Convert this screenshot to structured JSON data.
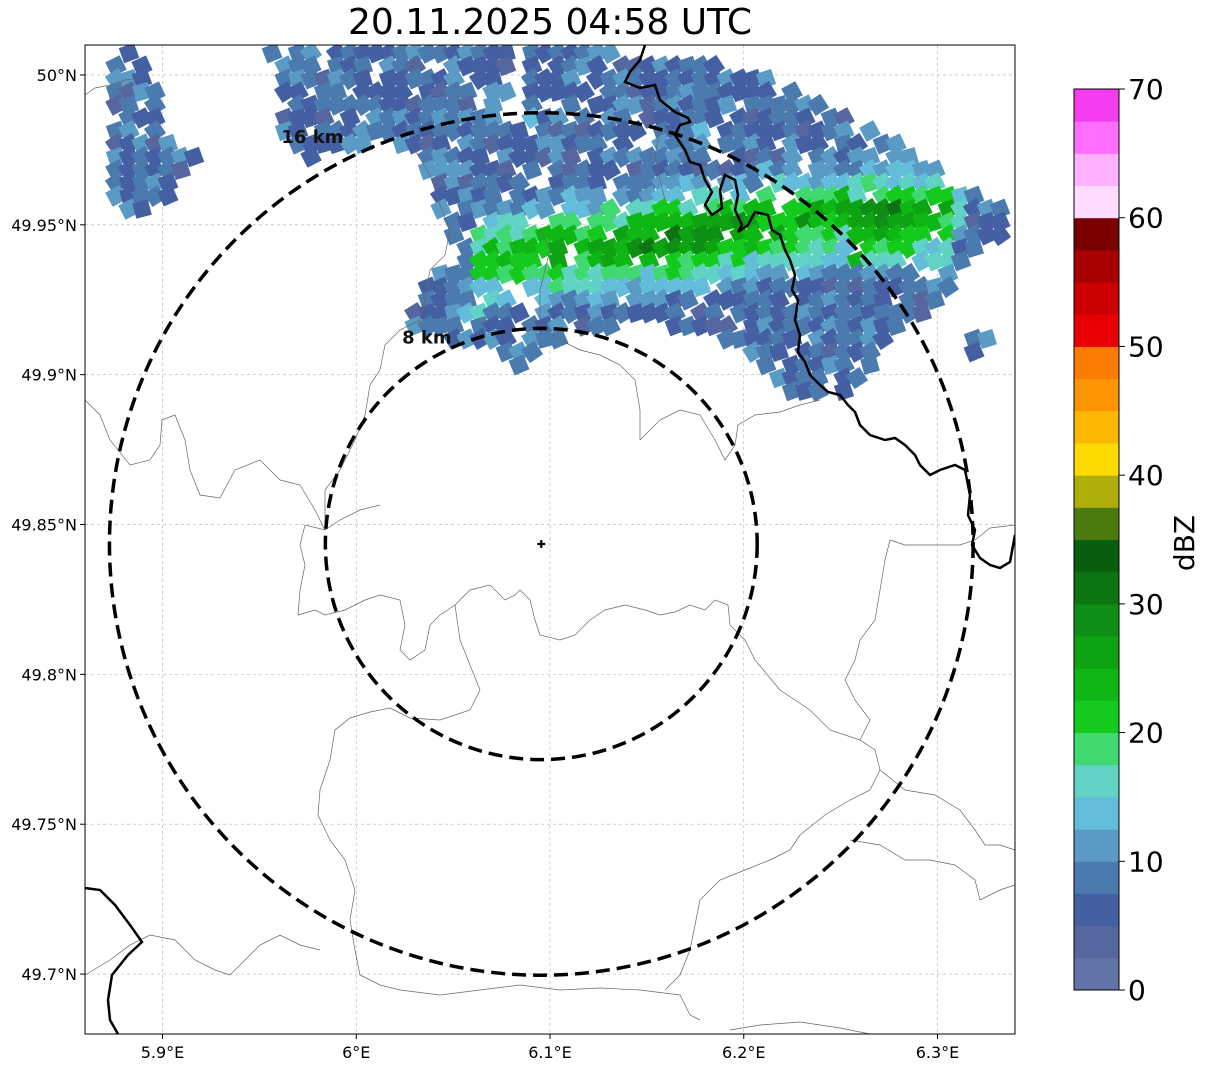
{
  "title": "20.11.2025 04:58 UTC",
  "map": {
    "lon_range": [
      5.86,
      6.34
    ],
    "lat_range": [
      49.68,
      50.01
    ],
    "lon_ticks": [
      {
        "value": 5.9,
        "label": "5.9°E"
      },
      {
        "value": 6.0,
        "label": "6°E"
      },
      {
        "value": 6.1,
        "label": "6.1°E"
      },
      {
        "value": 6.2,
        "label": "6.2°E"
      },
      {
        "value": 6.3,
        "label": "6.3°E"
      }
    ],
    "lat_ticks": [
      {
        "value": 50.0,
        "label": "50°N"
      },
      {
        "value": 49.95,
        "label": "49.95°N"
      },
      {
        "value": 49.9,
        "label": "49.9°N"
      },
      {
        "value": 49.85,
        "label": "49.85°N"
      },
      {
        "value": 49.8,
        "label": "49.8°N"
      },
      {
        "value": 49.75,
        "label": "49.75°N"
      },
      {
        "value": 49.7,
        "label": "49.7°N"
      }
    ],
    "radar_site": {
      "lon": 6.0955,
      "lat": 49.8435
    },
    "range_rings": [
      {
        "radius_km": 8,
        "label": "8 km"
      },
      {
        "radius_km": 16,
        "label": "16 km"
      }
    ],
    "gridlines": true
  },
  "colorbar": {
    "label": "dBZ",
    "min": 0,
    "max": 70,
    "step": 2.5,
    "ticks": [
      {
        "value": 0,
        "label": "0"
      },
      {
        "value": 10,
        "label": "10"
      },
      {
        "value": 20,
        "label": "20"
      },
      {
        "value": 30,
        "label": "30"
      },
      {
        "value": 40,
        "label": "40"
      },
      {
        "value": 50,
        "label": "50"
      },
      {
        "value": 60,
        "label": "60"
      },
      {
        "value": 70,
        "label": "70"
      }
    ],
    "colors": [
      "#6273a8",
      "#5667a0",
      "#4560a2",
      "#4b7aae",
      "#5a9bc6",
      "#64bcdb",
      "#60d3c5",
      "#3fd970",
      "#14cb1d",
      "#0fb715",
      "#0ea313",
      "#0c8f14",
      "#0b7611",
      "#075f0d",
      "#4d7a0f",
      "#adaf08",
      "#fddb02",
      "#fcb703",
      "#fc9501",
      "#fc7b02",
      "#e80002",
      "#cd0001",
      "#a90000",
      "#7a0000",
      "#ffdcff",
      "#ffb0ff",
      "#ff6fff",
      "#f53cf0"
    ]
  }
}
